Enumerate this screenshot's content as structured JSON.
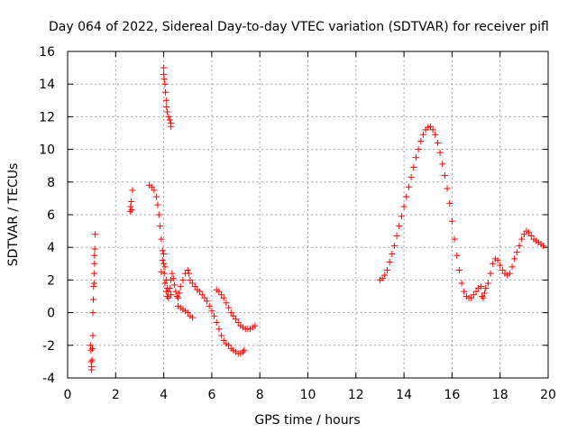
{
  "chart_data": {
    "type": "scatter",
    "title": "Day 064 of 2022, Sidereal Day-to-day VTEC variation (SDTVAR) for receiver pifl",
    "xlabel": "GPS time / hours",
    "ylabel": "SDTVAR / TECUs",
    "xlim": [
      0,
      20
    ],
    "ylim": [
      -4,
      16
    ],
    "x_ticks": [
      "0",
      "2",
      "4",
      "6",
      "8",
      "10",
      "12",
      "14",
      "16",
      "18",
      "20"
    ],
    "y_ticks": [
      "-4",
      "-2",
      "0",
      "2",
      "4",
      "6",
      "8",
      "10",
      "12",
      "14",
      "16"
    ],
    "grid": true,
    "marker": "+",
    "color": "#ff0000",
    "series": [
      {
        "name": "SDTVAR",
        "points": [
          [
            0.95,
            -2.0
          ],
          [
            0.97,
            -2.3
          ],
          [
            0.98,
            -3.0
          ],
          [
            1.0,
            -3.3
          ],
          [
            1.0,
            -3.5
          ],
          [
            1.02,
            -2.9
          ],
          [
            1.03,
            -2.2
          ],
          [
            1.05,
            0.0
          ],
          [
            1.07,
            0.8
          ],
          [
            1.08,
            1.6
          ],
          [
            1.1,
            1.8
          ],
          [
            1.1,
            2.4
          ],
          [
            1.12,
            3.0
          ],
          [
            1.12,
            3.5
          ],
          [
            1.13,
            3.9
          ],
          [
            1.15,
            4.8
          ],
          [
            1.05,
            -1.4
          ],
          [
            2.6,
            6.2
          ],
          [
            2.62,
            6.5
          ],
          [
            2.65,
            6.8
          ],
          [
            2.67,
            6.3
          ],
          [
            2.7,
            7.5
          ],
          [
            3.4,
            7.8
          ],
          [
            3.5,
            7.7
          ],
          [
            3.6,
            7.5
          ],
          [
            3.7,
            7.1
          ],
          [
            3.75,
            6.6
          ],
          [
            3.8,
            6.0
          ],
          [
            3.85,
            5.3
          ],
          [
            3.9,
            4.5
          ],
          [
            3.95,
            3.8
          ],
          [
            4.0,
            3.0
          ],
          [
            4.02,
            2.4
          ],
          [
            4.05,
            1.8
          ],
          [
            4.1,
            1.3
          ],
          [
            4.15,
            1.0
          ],
          [
            4.2,
            0.9
          ],
          [
            4.3,
            1.1
          ],
          [
            3.9,
            2.5
          ],
          [
            3.95,
            3.2
          ],
          [
            4.0,
            3.6
          ],
          [
            4.05,
            2.8
          ],
          [
            4.1,
            2.0
          ],
          [
            4.15,
            1.5
          ],
          [
            4.2,
            1.3
          ],
          [
            4.25,
            1.5
          ],
          [
            4.3,
            2.0
          ],
          [
            4.35,
            2.4
          ],
          [
            4.4,
            2.1
          ],
          [
            4.45,
            1.7
          ],
          [
            4.5,
            1.3
          ],
          [
            4.55,
            1.0
          ],
          [
            4.6,
            0.9
          ],
          [
            4.65,
            1.2
          ],
          [
            4.7,
            1.6
          ],
          [
            4.8,
            2.0
          ],
          [
            4.9,
            2.4
          ],
          [
            5.0,
            2.6
          ],
          [
            5.05,
            2.4
          ],
          [
            5.1,
            2.0
          ],
          [
            5.2,
            1.8
          ],
          [
            5.3,
            1.6
          ],
          [
            5.4,
            1.4
          ],
          [
            5.5,
            1.3
          ],
          [
            5.6,
            1.1
          ],
          [
            5.7,
            0.9
          ],
          [
            5.8,
            0.7
          ],
          [
            5.9,
            0.4
          ],
          [
            6.0,
            0.1
          ],
          [
            6.1,
            -0.2
          ],
          [
            6.2,
            -0.6
          ],
          [
            6.3,
            -1.0
          ],
          [
            6.4,
            -1.4
          ],
          [
            6.5,
            -1.7
          ],
          [
            6.6,
            -1.9
          ],
          [
            6.7,
            -2.0
          ],
          [
            6.8,
            -2.2
          ],
          [
            6.9,
            -2.3
          ],
          [
            7.0,
            -2.4
          ],
          [
            7.1,
            -2.5
          ],
          [
            7.2,
            -2.5
          ],
          [
            7.3,
            -2.4
          ],
          [
            7.35,
            -2.3
          ],
          [
            4.6,
            0.4
          ],
          [
            4.7,
            0.3
          ],
          [
            4.8,
            0.2
          ],
          [
            4.9,
            0.1
          ],
          [
            5.0,
            0.0
          ],
          [
            5.1,
            -0.2
          ],
          [
            5.2,
            -0.3
          ],
          [
            4.0,
            15.0
          ],
          [
            4.0,
            14.6
          ],
          [
            4.02,
            14.3
          ],
          [
            4.05,
            14.0
          ],
          [
            4.07,
            13.5
          ],
          [
            4.1,
            13.0
          ],
          [
            4.12,
            12.6
          ],
          [
            4.15,
            12.3
          ],
          [
            4.2,
            12.0
          ],
          [
            4.25,
            11.8
          ],
          [
            4.3,
            11.6
          ],
          [
            4.3,
            11.4
          ],
          [
            6.2,
            1.4
          ],
          [
            6.3,
            1.3
          ],
          [
            6.4,
            1.1
          ],
          [
            6.5,
            0.9
          ],
          [
            6.6,
            0.6
          ],
          [
            6.7,
            0.3
          ],
          [
            6.8,
            0.0
          ],
          [
            6.9,
            -0.2
          ],
          [
            7.0,
            -0.4
          ],
          [
            7.1,
            -0.6
          ],
          [
            7.2,
            -0.8
          ],
          [
            7.3,
            -0.9
          ],
          [
            7.4,
            -1.0
          ],
          [
            7.5,
            -1.0
          ],
          [
            7.6,
            -1.0
          ],
          [
            7.7,
            -0.9
          ],
          [
            7.8,
            -0.8
          ],
          [
            13.0,
            2.0
          ],
          [
            13.1,
            2.1
          ],
          [
            13.2,
            2.3
          ],
          [
            13.3,
            2.6
          ],
          [
            13.4,
            3.1
          ],
          [
            13.5,
            3.6
          ],
          [
            13.6,
            4.1
          ],
          [
            13.7,
            4.7
          ],
          [
            13.8,
            5.3
          ],
          [
            13.9,
            5.9
          ],
          [
            14.0,
            6.5
          ],
          [
            14.1,
            7.1
          ],
          [
            14.2,
            7.7
          ],
          [
            14.3,
            8.3
          ],
          [
            14.4,
            8.9
          ],
          [
            14.5,
            9.5
          ],
          [
            14.6,
            10.0
          ],
          [
            14.7,
            10.5
          ],
          [
            14.8,
            10.9
          ],
          [
            14.9,
            11.2
          ],
          [
            15.0,
            11.35
          ],
          [
            15.1,
            11.4
          ],
          [
            15.2,
            11.2
          ],
          [
            15.3,
            10.9
          ],
          [
            15.4,
            10.4
          ],
          [
            15.5,
            9.8
          ],
          [
            15.6,
            9.1
          ],
          [
            15.7,
            8.4
          ],
          [
            15.8,
            7.6
          ],
          [
            15.9,
            6.7
          ],
          [
            16.0,
            5.6
          ],
          [
            16.1,
            4.5
          ],
          [
            16.2,
            3.5
          ],
          [
            16.3,
            2.6
          ],
          [
            16.4,
            1.8
          ],
          [
            16.5,
            1.3
          ],
          [
            16.6,
            1.0
          ],
          [
            16.7,
            0.9
          ],
          [
            16.8,
            0.9
          ],
          [
            16.9,
            1.1
          ],
          [
            17.0,
            1.3
          ],
          [
            17.1,
            1.5
          ],
          [
            17.2,
            1.6
          ],
          [
            17.25,
            1.0
          ],
          [
            17.3,
            0.9
          ],
          [
            17.35,
            1.2
          ],
          [
            17.4,
            1.5
          ],
          [
            17.5,
            1.8
          ],
          [
            17.6,
            2.4
          ],
          [
            17.7,
            3.0
          ],
          [
            17.8,
            3.3
          ],
          [
            17.9,
            3.2
          ],
          [
            18.0,
            2.9
          ],
          [
            18.1,
            2.6
          ],
          [
            18.2,
            2.4
          ],
          [
            18.3,
            2.3
          ],
          [
            18.4,
            2.4
          ],
          [
            18.5,
            2.8
          ],
          [
            18.6,
            3.3
          ],
          [
            18.7,
            3.7
          ],
          [
            18.8,
            4.1
          ],
          [
            18.9,
            4.5
          ],
          [
            19.0,
            4.8
          ],
          [
            19.1,
            5.0
          ],
          [
            19.2,
            4.9
          ],
          [
            19.3,
            4.7
          ],
          [
            19.4,
            4.5
          ],
          [
            19.5,
            4.4
          ],
          [
            19.6,
            4.3
          ],
          [
            19.7,
            4.2
          ],
          [
            19.8,
            4.1
          ]
        ]
      }
    ]
  }
}
